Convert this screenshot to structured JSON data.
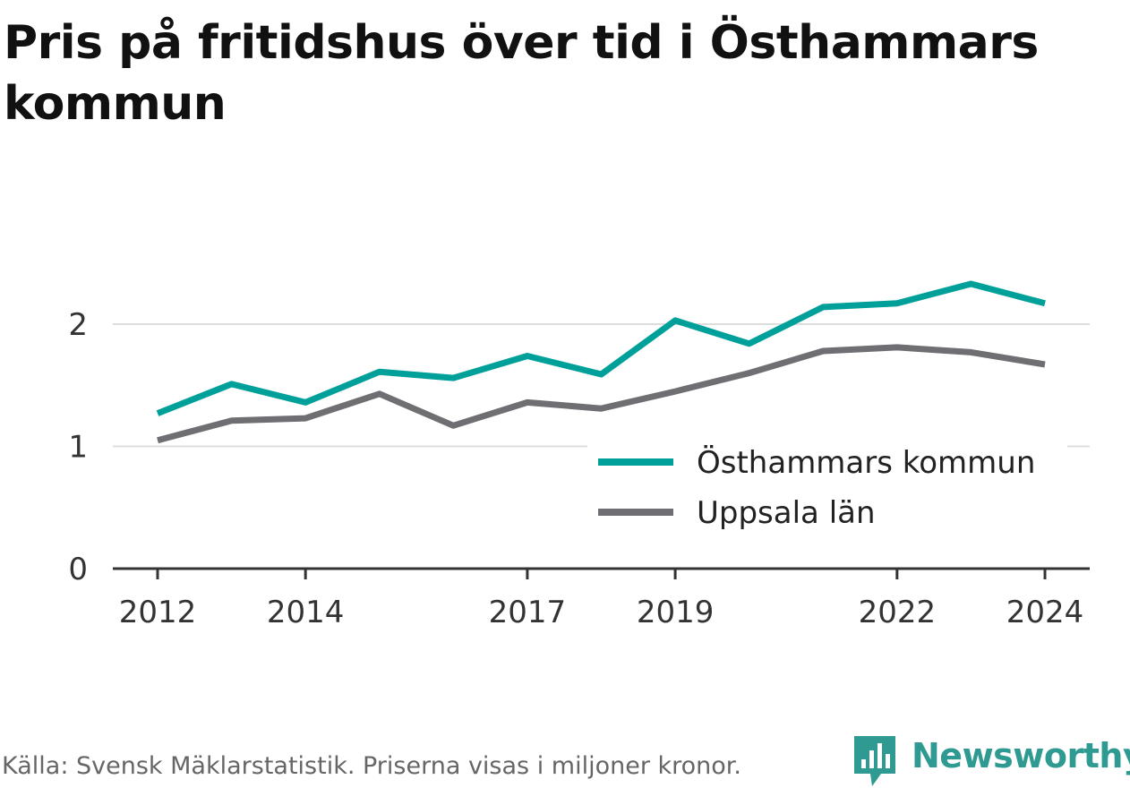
{
  "title": "Pris på fritidshus över tid i Östhammars kommun",
  "source": "Källa: Svensk Mäklarstatistik. Priserna visas i miljoner kronor.",
  "brand": {
    "name": "Newsworthy",
    "icon": "bar-chart-speech-bubble-icon",
    "color": "#2e9a92"
  },
  "chart_data": {
    "type": "line",
    "x": [
      2012,
      2013,
      2014,
      2015,
      2016,
      2017,
      2018,
      2019,
      2020,
      2021,
      2022,
      2023,
      2024
    ],
    "x_tick_labels": [
      "2012",
      "2014",
      "2017",
      "2019",
      "2022",
      "2024"
    ],
    "y_ticks": [
      0,
      1,
      2
    ],
    "ylim": [
      0,
      2.5
    ],
    "grid": "horizontal",
    "legend_position": "bottom-right",
    "series": [
      {
        "name": "Östhammars kommun",
        "color": "#00a09a",
        "values": [
          1.27,
          1.51,
          1.36,
          1.61,
          1.56,
          1.74,
          1.59,
          2.03,
          1.84,
          2.14,
          2.17,
          2.33,
          2.17
        ]
      },
      {
        "name": "Uppsala län",
        "color": "#6f6e73",
        "values": [
          1.05,
          1.21,
          1.23,
          1.43,
          1.17,
          1.36,
          1.31,
          1.45,
          1.6,
          1.78,
          1.81,
          1.77,
          1.67
        ]
      }
    ]
  }
}
